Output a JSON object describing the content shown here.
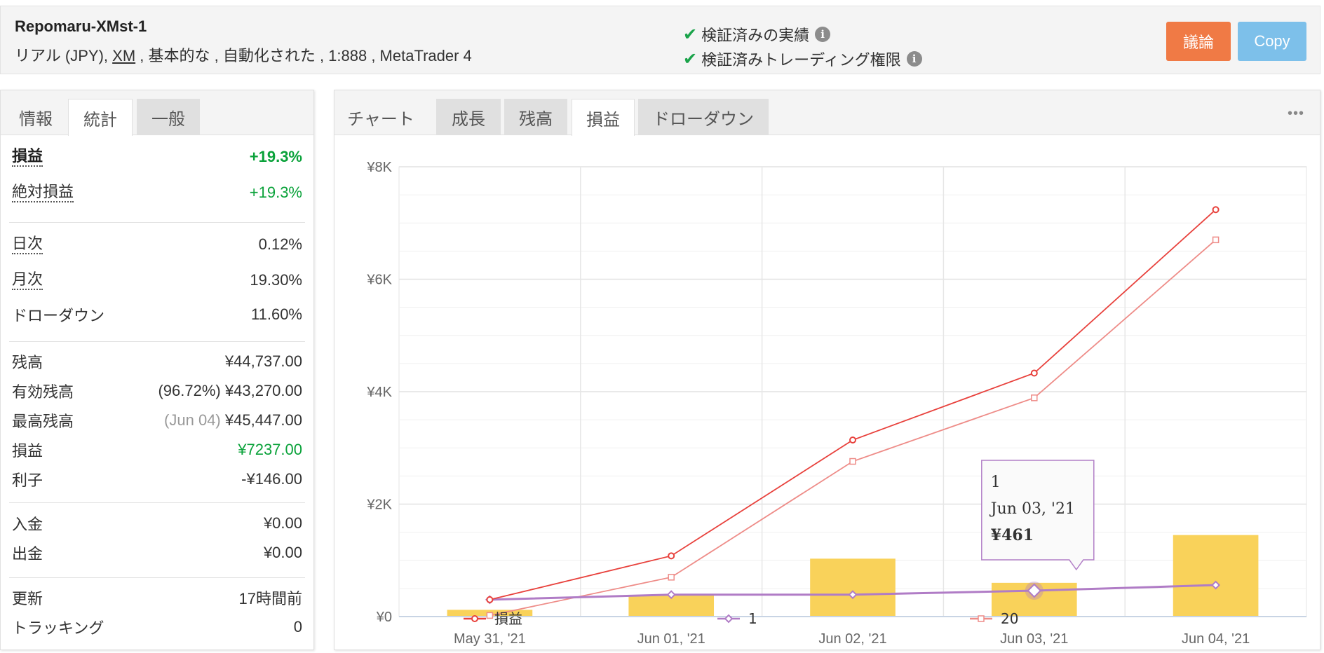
{
  "header": {
    "account_name": "Repomaru-XMst-1",
    "desc_prefix": "リアル (JPY),",
    "broker": "XM",
    "desc_suffix": ", 基本的な , 自動化された , 1:888 , MetaTrader 4",
    "verified_track": "検証済みの実績",
    "verified_trading": "検証済みトレーディング権限",
    "discuss_label": "議論",
    "copy_label": "Copy"
  },
  "left_tabs": [
    "情報",
    "統計",
    "一般"
  ],
  "stats": {
    "profit_label": "損益",
    "profit_value": "+19.3%",
    "abs_label": "絶対損益",
    "abs_value": "+19.3%",
    "daily_label": "日次",
    "daily_value": "0.12%",
    "monthly_label": "月次",
    "monthly_value": "19.30%",
    "drawdown_label": "ドローダウン",
    "drawdown_value": "11.60%",
    "balance_label": "残高",
    "balance_value": "¥44,737.00",
    "equity_label": "有効残高",
    "equity_pct": "(96.72%)",
    "equity_value": "¥43,270.00",
    "highest_label": "最高残高",
    "highest_date": "(Jun 04)",
    "highest_value": "¥45,447.00",
    "pl_label": "損益",
    "pl_value": "¥7237.00",
    "interest_label": "利子",
    "interest_value": "-¥146.00",
    "deposit_label": "入金",
    "deposit_value": "¥0.00",
    "withdraw_label": "出金",
    "withdraw_value": "¥0.00",
    "updated_label": "更新",
    "updated_value": "17時間前",
    "tracking_label": "トラッキング",
    "tracking_value": "0"
  },
  "chart_tabs": [
    "チャート",
    "成長",
    "残高",
    "損益",
    "ドローダウン"
  ],
  "more_icon": "•••",
  "chart_data": {
    "type": "line",
    "categories": [
      "May 31, '21",
      "Jun 01, '21",
      "Jun 02, '21",
      "Jun 03, '21",
      "Jun 04, '21"
    ],
    "ylim": [
      0,
      8000
    ],
    "y_ticks": [
      0,
      2000,
      4000,
      6000,
      8000
    ],
    "y_tick_labels": [
      "¥0",
      "¥2K",
      "¥4K",
      "¥6K",
      "¥8K"
    ],
    "bars": [
      120,
      380,
      1030,
      600,
      1450
    ],
    "series": [
      {
        "name": "損益",
        "color": "#e8413c",
        "marker": "circle",
        "values": [
          300,
          1080,
          3140,
          4330,
          7237
        ]
      },
      {
        "name": "1",
        "color": "#b07cc6",
        "marker": "diamond",
        "values": [
          300,
          390,
          390,
          461,
          560
        ]
      },
      {
        "name": "20",
        "color": "#ee8c88",
        "marker": "square",
        "values": [
          20,
          700,
          2760,
          3890,
          6700
        ]
      }
    ],
    "bar_color": "#f9d25a",
    "tooltip": {
      "series": "1",
      "date": "Jun 03, '21",
      "value": "¥461"
    }
  }
}
